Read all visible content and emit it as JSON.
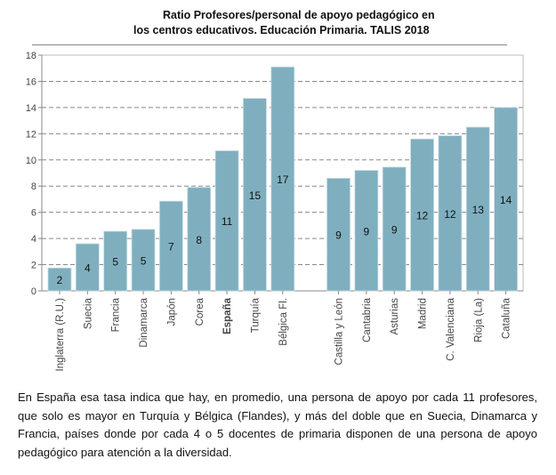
{
  "chart_data": {
    "type": "bar",
    "title_line1": "Ratio Profesores/personal de apoyo pedagógico en",
    "title_line2": "los centros educativos. Educación Primaria. TALIS 2018",
    "xlabel": "",
    "ylabel": "",
    "ylim": [
      0,
      18
    ],
    "yticks": [
      "0",
      "2",
      "4",
      "6",
      "8",
      "10",
      "12",
      "14",
      "16",
      "18"
    ],
    "grid": "horizontal-dashed",
    "bar_color": "#7FAFBF",
    "categories": [
      "Inglaterra (R.U.)",
      "Suecia",
      "Francia",
      "Dinamarca",
      "Japón",
      "Corea",
      "España",
      "Turquía",
      "Bélgica Fl.",
      "Castilla y León",
      "Cantabria",
      "Asturias",
      "Madrid",
      "C. Valenciana",
      "Rioja (La)",
      "Cataluña"
    ],
    "values": [
      1.75,
      3.6,
      4.55,
      4.7,
      6.85,
      7.9,
      10.7,
      14.7,
      17.1,
      8.6,
      9.2,
      9.45,
      11.6,
      11.85,
      12.5,
      14.0
    ],
    "data_labels": [
      "2",
      "4",
      "5",
      "5",
      "7",
      "8",
      "11",
      "15",
      "17",
      "9",
      "9",
      "9",
      "12",
      "12",
      "13",
      "14"
    ],
    "slots": [
      0,
      1,
      2,
      3,
      4,
      5,
      6,
      7,
      8,
      10,
      11,
      12,
      13,
      14,
      15,
      16
    ],
    "bold_category": "España"
  },
  "paragraph": "En España esa tasa indica que hay, en promedio, una persona de apoyo por cada 11 profesores, que solo es mayor en Turquía y Bélgica (Flandes), y más del doble que en Suecia, Dinamarca y Francia, países donde por cada 4 o 5 docentes de primaria disponen de una persona de apoyo pedagógico para atención a la diversidad."
}
